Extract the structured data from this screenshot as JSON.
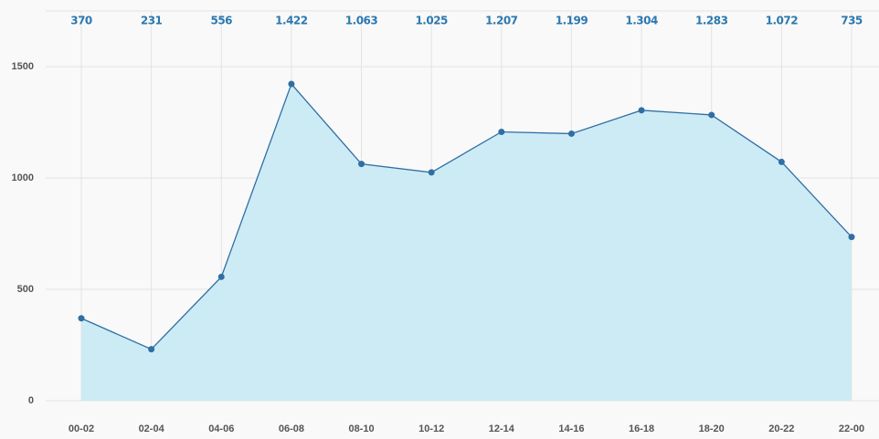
{
  "chart_data": {
    "type": "area",
    "categories": [
      "00-02",
      "02-04",
      "04-06",
      "06-08",
      "08-10",
      "10-12",
      "12-14",
      "14-16",
      "16-18",
      "18-20",
      "20-22",
      "22-00"
    ],
    "values": [
      370,
      231,
      556,
      1422,
      1063,
      1025,
      1207,
      1199,
      1304,
      1283,
      1072,
      735
    ],
    "value_labels": [
      "370",
      "231",
      "556",
      "1.422",
      "1.063",
      "1.025",
      "1.207",
      "1.199",
      "1.304",
      "1.283",
      "1.072",
      "735"
    ],
    "color": "#2f6fa3",
    "fill_color": "#cdebf5",
    "ylim": [
      0,
      1750
    ],
    "yticks": [
      0,
      500,
      1000,
      1500
    ],
    "grid": true
  }
}
